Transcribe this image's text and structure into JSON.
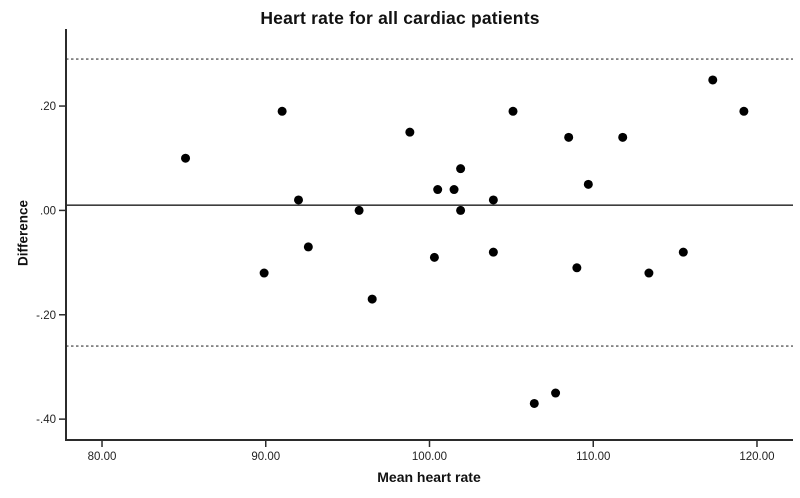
{
  "chart_data": {
    "type": "scatter",
    "title": "Heart rate for all cardiac patients",
    "xlabel": "Mean heart rate",
    "ylabel": "Difference",
    "xlim": [
      77.8,
      122.2
    ],
    "ylim": [
      -0.44,
      0.34
    ],
    "grid": false,
    "legend": false,
    "x_ticks": {
      "values": [
        80,
        90,
        100,
        110,
        120
      ],
      "labels": [
        "80.00",
        "90.00",
        "100.00",
        "110.00",
        "120.00"
      ]
    },
    "y_ticks": {
      "values": [
        0.2,
        0.0,
        -0.2,
        -0.4
      ],
      "labels": [
        ".20",
        ".00",
        "-.20",
        "-.40"
      ]
    },
    "reference_lines": [
      {
        "name": "mean-line",
        "value": 0.01,
        "style": "solid"
      },
      {
        "name": "upper-limit-line",
        "value": 0.29,
        "style": "dashed"
      },
      {
        "name": "lower-limit-line",
        "value": -0.26,
        "style": "dashed"
      }
    ],
    "points": [
      [
        85.1,
        0.1
      ],
      [
        89.9,
        -0.12
      ],
      [
        91.0,
        0.19
      ],
      [
        92.0,
        0.02
      ],
      [
        92.6,
        -0.07
      ],
      [
        95.7,
        0.0
      ],
      [
        96.5,
        -0.17
      ],
      [
        98.8,
        0.15
      ],
      [
        100.3,
        -0.09
      ],
      [
        100.5,
        0.04
      ],
      [
        101.5,
        0.04
      ],
      [
        101.9,
        0.08
      ],
      [
        101.9,
        0.0
      ],
      [
        103.9,
        0.02
      ],
      [
        103.9,
        -0.08
      ],
      [
        105.1,
        0.19
      ],
      [
        106.4,
        -0.37
      ],
      [
        107.7,
        -0.35
      ],
      [
        108.5,
        0.14
      ],
      [
        109.0,
        -0.11
      ],
      [
        109.7,
        0.05
      ],
      [
        111.8,
        0.14
      ],
      [
        113.4,
        -0.12
      ],
      [
        115.5,
        -0.08
      ],
      [
        117.3,
        0.25
      ],
      [
        119.2,
        0.19
      ]
    ],
    "colors": {
      "point": "#000000",
      "axis": "#2b2b2b",
      "solid_line": "#3d3d3d",
      "dashed_line": "#5c5c5c",
      "background": "#ffffff",
      "text": "#1f1f1f"
    }
  }
}
